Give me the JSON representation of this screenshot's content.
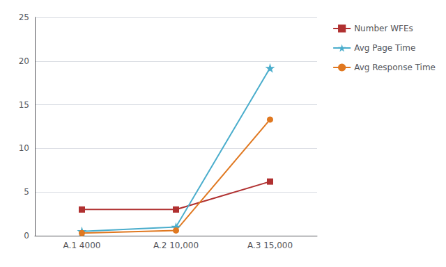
{
  "chart_data": {
    "type": "line",
    "categories": [
      "A.1 4000",
      "A.2 10,000",
      "A.3 15,000"
    ],
    "series": [
      {
        "name": "Number WFEs",
        "color": "#B03030",
        "marker": "square",
        "values": [
          3.0,
          3.0,
          6.2
        ]
      },
      {
        "name": "Avg Page Time",
        "color": "#4AADCC",
        "marker": "star",
        "values": [
          0.5,
          1.0,
          19.2
        ]
      },
      {
        "name": "Avg Response Time",
        "color": "#E07820",
        "marker": "circle",
        "values": [
          0.3,
          0.6,
          13.3
        ]
      }
    ],
    "ylim": [
      0,
      25
    ],
    "yticks": [
      0,
      5,
      10,
      15,
      20,
      25
    ],
    "grid": true,
    "legend": "right"
  }
}
